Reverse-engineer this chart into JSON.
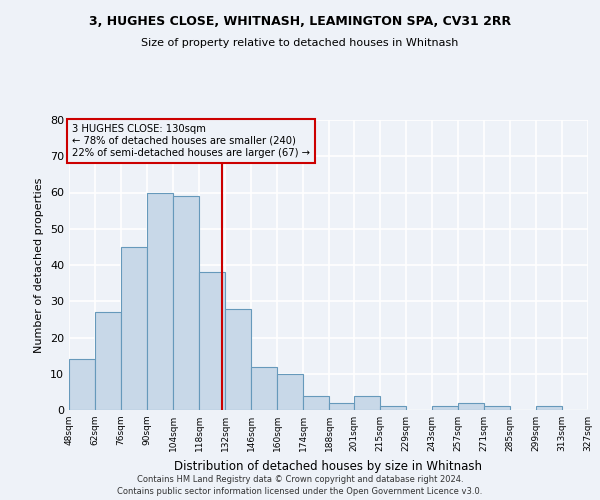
{
  "title1": "3, HUGHES CLOSE, WHITNASH, LEAMINGTON SPA, CV31 2RR",
  "title2": "Size of property relative to detached houses in Whitnash",
  "xlabel": "Distribution of detached houses by size in Whitnash",
  "ylabel": "Number of detached properties",
  "bin_labels": [
    "48sqm",
    "62sqm",
    "76sqm",
    "90sqm",
    "104sqm",
    "118sqm",
    "132sqm",
    "146sqm",
    "160sqm",
    "174sqm",
    "188sqm",
    "201sqm",
    "215sqm",
    "229sqm",
    "243sqm",
    "257sqm",
    "271sqm",
    "285sqm",
    "299sqm",
    "313sqm",
    "327sqm"
  ],
  "bar_heights": [
    14,
    27,
    45,
    60,
    59,
    38,
    28,
    12,
    10,
    4,
    2,
    4,
    1,
    0,
    1,
    2,
    1,
    0,
    1,
    0
  ],
  "bin_edges": [
    48,
    62,
    76,
    90,
    104,
    118,
    132,
    146,
    160,
    174,
    188,
    201,
    215,
    229,
    243,
    257,
    271,
    285,
    299,
    313,
    327
  ],
  "bar_color": "#c8d8e8",
  "bar_edge_color": "#6699bb",
  "property_size": 130,
  "property_label": "3 HUGHES CLOSE: 130sqm",
  "annotation_line1": "← 78% of detached houses are smaller (240)",
  "annotation_line2": "22% of semi-detached houses are larger (67) →",
  "vline_color": "#cc0000",
  "annotation_box_color": "#cc0000",
  "background_color": "#eef2f8",
  "grid_color": "#ffffff",
  "ylim": [
    0,
    80
  ],
  "yticks": [
    0,
    10,
    20,
    30,
    40,
    50,
    60,
    70,
    80
  ],
  "footer1": "Contains HM Land Registry data © Crown copyright and database right 2024.",
  "footer2": "Contains public sector information licensed under the Open Government Licence v3.0."
}
